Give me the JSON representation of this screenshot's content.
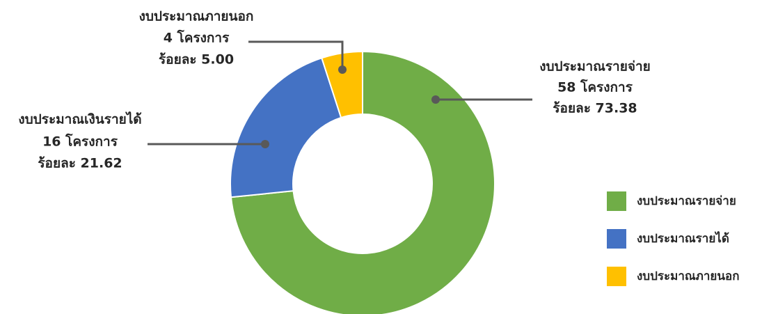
{
  "chart_data": {
    "type": "donut",
    "categories": [
      "งบประมาณรายจ่าย",
      "งบประมาณรายได้",
      "งบประมาณภายนอก"
    ],
    "values": [
      73.38,
      21.62,
      5.0
    ],
    "value_labels": [
      "ร้อยละ 73.38",
      "ร้อยละ 21.62",
      "ร้อยละ 5.00"
    ],
    "label_names": [
      "งบประมาณรายจ่าย",
      "งบประมาณเงินรายได้",
      "งบประมาณภายนอก"
    ],
    "count_labels": [
      "58 โครงการ",
      "16 โครงการ",
      "4 โครงการ"
    ],
    "colors": [
      "#70ad47",
      "#4472c4",
      "#ffc000"
    ],
    "legend": "right"
  }
}
